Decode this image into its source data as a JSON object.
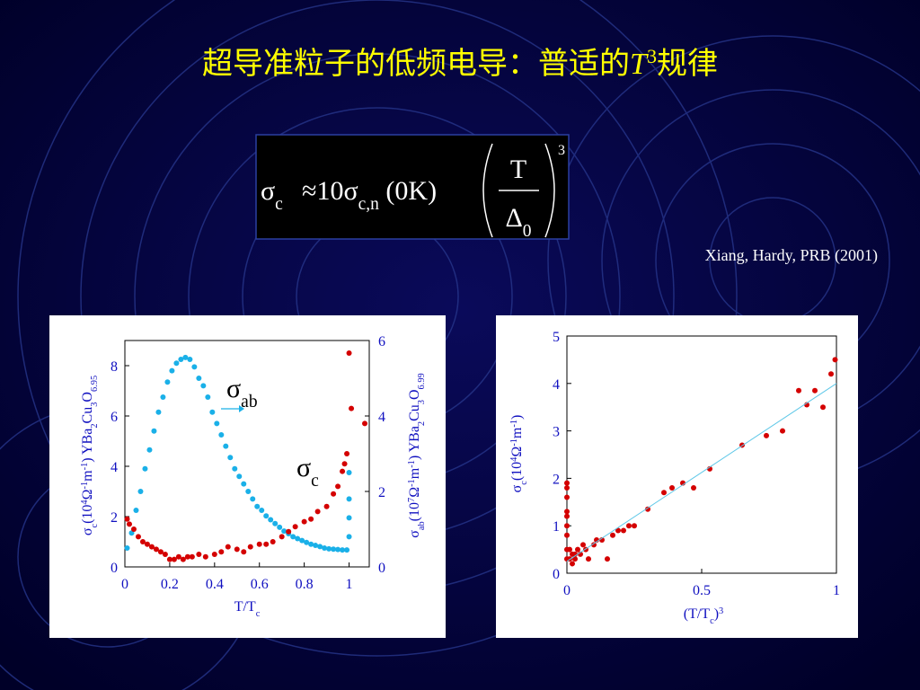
{
  "title": [
    {
      "text": "超导准粒子的低频电导：普适的"
    },
    {
      "text": "T",
      "style": "italic"
    },
    {
      "text": "3",
      "shift": "super"
    },
    {
      "text": "规律"
    }
  ],
  "formula": {
    "lhs": [
      {
        "text": "σ"
      },
      {
        "text": "c",
        "shift": "sub"
      }
    ],
    "rhs": [
      {
        "text": "≈10σ"
      },
      {
        "text": "c,n",
        "shift": "sub"
      },
      {
        "text": " (0K)"
      }
    ],
    "numerator": "T",
    "denominator": [
      {
        "text": "Δ"
      },
      {
        "text": "0",
        "shift": "sub"
      }
    ],
    "exponent": "3"
  },
  "citation": "Xiang, Hardy, PRB (2001)",
  "chart_data": [
    {
      "type": "scatter",
      "xlabel": [
        {
          "text": "T/T"
        },
        {
          "text": "c",
          "shift": "sub"
        }
      ],
      "ylabel": [
        {
          "text": "σ"
        },
        {
          "text": "c",
          "shift": "sub"
        },
        {
          "text": "(10"
        },
        {
          "text": "4",
          "shift": "super"
        },
        {
          "text": "Ω"
        },
        {
          "text": "-1",
          "shift": "super"
        },
        {
          "text": "m"
        },
        {
          "text": "-1",
          "shift": "super"
        },
        {
          "text": ")  YBa"
        },
        {
          "text": "2",
          "shift": "sub"
        },
        {
          "text": "Cu"
        },
        {
          "text": "3",
          "shift": "sub"
        },
        {
          "text": "O"
        },
        {
          "text": "6.95",
          "shift": "sub"
        }
      ],
      "y2label": [
        {
          "text": "σ"
        },
        {
          "text": "ab",
          "shift": "sub"
        },
        {
          "text": "(10"
        },
        {
          "text": "7",
          "shift": "super"
        },
        {
          "text": "Ω"
        },
        {
          "text": "-1",
          "shift": "super"
        },
        {
          "text": "m"
        },
        {
          "text": "-1",
          "shift": "super"
        },
        {
          "text": ")  YBa"
        },
        {
          "text": "2",
          "shift": "sub"
        },
        {
          "text": "Cu"
        },
        {
          "text": "3",
          "shift": "sub"
        },
        {
          "text": "O"
        },
        {
          "text": "6.99",
          "shift": "sub"
        }
      ],
      "xlim": [
        0,
        1.09
      ],
      "xticks": [
        0,
        0.2,
        0.4,
        0.6,
        0.8,
        1
      ],
      "ylim": [
        0,
        9
      ],
      "yticks": [
        0,
        2,
        4,
        6,
        8
      ],
      "y2lim": [
        0,
        6
      ],
      "y2ticks": [
        0,
        2,
        4,
        6
      ],
      "annotations": [
        [
          {
            "text": "σ"
          },
          {
            "text": "ab",
            "shift": "sub"
          }
        ],
        [
          {
            "text": "σ"
          },
          {
            "text": "c",
            "shift": "sub"
          }
        ]
      ],
      "series": [
        {
          "color": "#1ab0e8",
          "axis": "y2",
          "x": [
            0.01,
            0.03,
            0.05,
            0.07,
            0.09,
            0.11,
            0.13,
            0.15,
            0.17,
            0.19,
            0.21,
            0.23,
            0.25,
            0.27,
            0.29,
            0.31,
            0.33,
            0.35,
            0.37,
            0.39,
            0.41,
            0.43,
            0.45,
            0.47,
            0.49,
            0.51,
            0.53,
            0.55,
            0.57,
            0.59,
            0.61,
            0.63,
            0.65,
            0.67,
            0.69,
            0.71,
            0.73,
            0.75,
            0.77,
            0.79,
            0.81,
            0.83,
            0.85,
            0.87,
            0.89,
            0.91,
            0.93,
            0.95,
            0.97,
            0.99,
            1.0,
            1.0,
            1.0,
            1.0
          ],
          "values": [
            0.5,
            0.9,
            1.5,
            2.0,
            2.6,
            3.1,
            3.6,
            4.1,
            4.5,
            4.9,
            5.2,
            5.4,
            5.5,
            5.55,
            5.5,
            5.3,
            5.0,
            4.8,
            4.5,
            4.1,
            3.8,
            3.5,
            3.2,
            2.9,
            2.6,
            2.4,
            2.2,
            2.0,
            1.8,
            1.6,
            1.5,
            1.35,
            1.25,
            1.15,
            1.05,
            0.95,
            0.88,
            0.8,
            0.75,
            0.7,
            0.65,
            0.6,
            0.57,
            0.54,
            0.5,
            0.48,
            0.47,
            0.46,
            0.45,
            0.45,
            0.8,
            1.3,
            1.8,
            2.5
          ]
        },
        {
          "color": "#d40000",
          "x": [
            0.01,
            0.02,
            0.04,
            0.06,
            0.08,
            0.1,
            0.12,
            0.14,
            0.16,
            0.18,
            0.2,
            0.22,
            0.24,
            0.26,
            0.28,
            0.3,
            0.33,
            0.36,
            0.4,
            0.43,
            0.46,
            0.5,
            0.53,
            0.56,
            0.6,
            0.63,
            0.66,
            0.7,
            0.73,
            0.76,
            0.8,
            0.83,
            0.86,
            0.9,
            0.93,
            0.95,
            0.97,
            0.98,
            0.99,
            1.0,
            1.01,
            1.07
          ],
          "values": [
            1.9,
            1.7,
            1.5,
            1.2,
            1.0,
            0.9,
            0.8,
            0.7,
            0.6,
            0.5,
            0.3,
            0.3,
            0.4,
            0.3,
            0.4,
            0.4,
            0.5,
            0.4,
            0.5,
            0.6,
            0.8,
            0.7,
            0.6,
            0.8,
            0.9,
            0.9,
            1.0,
            1.2,
            1.4,
            1.6,
            1.8,
            1.9,
            2.2,
            2.4,
            2.9,
            3.2,
            3.8,
            4.1,
            4.5,
            8.5,
            6.3,
            5.7
          ]
        }
      ]
    },
    {
      "type": "scatter",
      "xlabel": [
        {
          "text": "(T/T"
        },
        {
          "text": "c",
          "shift": "sub"
        },
        {
          "text": ")"
        },
        {
          "text": "3",
          "shift": "super"
        }
      ],
      "ylabel": [
        {
          "text": "σ"
        },
        {
          "text": "c",
          "shift": "sub"
        },
        {
          "text": "(10"
        },
        {
          "text": "4",
          "shift": "super"
        },
        {
          "text": "Ω"
        },
        {
          "text": "-1",
          "shift": "super"
        },
        {
          "text": "m"
        },
        {
          "text": "-1",
          "shift": "super"
        },
        {
          "text": ")"
        }
      ],
      "xlim": [
        0,
        1
      ],
      "xticks": [
        0,
        0.5,
        1
      ],
      "ylim": [
        0,
        5
      ],
      "yticks": [
        0,
        1,
        2,
        3,
        4,
        5
      ],
      "series": [
        {
          "color": "#d40000",
          "x": [
            0,
            0,
            0,
            0,
            0,
            0,
            0,
            0,
            0,
            0.01,
            0.01,
            0.02,
            0.02,
            0.03,
            0.03,
            0.04,
            0.05,
            0.06,
            0.07,
            0.08,
            0.1,
            0.11,
            0.13,
            0.15,
            0.17,
            0.19,
            0.21,
            0.23,
            0.25,
            0.3,
            0.36,
            0.39,
            0.43,
            0.47,
            0.53,
            0.65,
            0.74,
            0.8,
            0.86,
            0.89,
            0.92,
            0.95,
            0.98,
            0.995
          ],
          "values": [
            1.9,
            1.8,
            1.6,
            1.3,
            1.2,
            1.0,
            0.8,
            0.5,
            0.3,
            0.5,
            0.3,
            0.4,
            0.2,
            0.4,
            0.3,
            0.5,
            0.4,
            0.6,
            0.5,
            0.3,
            0.6,
            0.7,
            0.7,
            0.3,
            0.8,
            0.9,
            0.9,
            1.0,
            1.0,
            1.35,
            1.7,
            1.8,
            1.9,
            1.8,
            2.2,
            2.7,
            2.9,
            3.0,
            3.85,
            3.55,
            3.85,
            3.5,
            4.2,
            4.5
          ]
        },
        {
          "color": "#5fc8e8",
          "type": "line",
          "x": [
            0,
            1
          ],
          "values": [
            0.25,
            4.0
          ]
        }
      ]
    }
  ]
}
